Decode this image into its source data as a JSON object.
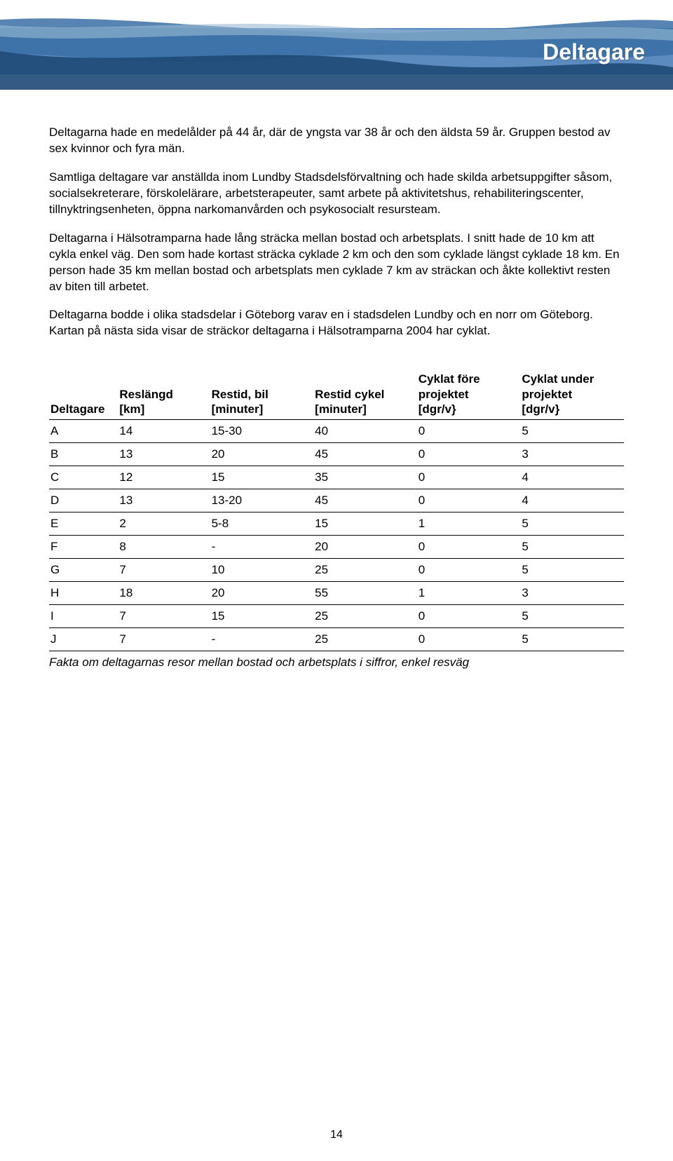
{
  "banner": {
    "title": "Deltagare",
    "colors": {
      "base": "#5b8bbf",
      "mid": "#3a6ea5",
      "dark": "#1e4976",
      "light": "#9bbad6"
    }
  },
  "paragraphs": [
    "Deltagarna hade en medelålder på 44 år, där de yngsta var 38 år och den äldsta 59 år. Gruppen bestod av sex kvinnor och fyra män.",
    "Samtliga deltagare var anställda inom Lundby Stadsdelsförvaltning och hade skilda arbetsuppgifter såsom, socialsekreterare, förskolelärare, arbetsterapeuter, samt arbete på aktivitetshus, rehabiliteringscenter, tillnyktringsenheten, öppna narkomanvården och psykosocialt resursteam.",
    "Deltagarna i Hälsotramparna hade lång sträcka mellan bostad och arbetsplats. I snitt hade de 10 km att cykla enkel väg. Den som hade kortast sträcka cyklade 2 km och den som cyklade längst cyklade 18 km. En person hade 35 km mellan bostad och arbetsplats men cyklade 7 km av sträckan och åkte kollektivt resten av biten till arbetet.",
    "Deltagarna bodde i olika stadsdelar i Göteborg varav en i stadsdelen Lundby och en norr om Göteborg. Kartan på nästa sida visar de sträckor deltagarna i Hälsotramparna 2004 har cyklat."
  ],
  "table": {
    "type": "table",
    "columns": [
      "Deltagare",
      "Reslängd\n[km]",
      "Restid, bil\n[minuter]",
      "Restid cykel\n[minuter]",
      "Cyklat före\nprojektet\n[dgr/v}",
      "Cyklat under\nprojektet\n[dgr/v}"
    ],
    "col_widths_pct": [
      12,
      16,
      18,
      18,
      18,
      18
    ],
    "rows": [
      [
        "A",
        "14",
        "15-30",
        "40",
        "0",
        "5"
      ],
      [
        "B",
        "13",
        "20",
        "45",
        "0",
        "3"
      ],
      [
        "C",
        "12",
        "15",
        "35",
        "0",
        "4"
      ],
      [
        "D",
        "13",
        "13-20",
        "45",
        "0",
        "4"
      ],
      [
        "E",
        "2",
        "5-8",
        "15",
        "1",
        "5"
      ],
      [
        "F",
        "8",
        "-",
        "20",
        "0",
        "5"
      ],
      [
        "G",
        "7",
        "10",
        "25",
        "0",
        "5"
      ],
      [
        "H",
        "18",
        "20",
        "55",
        "1",
        "3"
      ],
      [
        "I",
        "7",
        "15",
        "25",
        "0",
        "5"
      ],
      [
        "J",
        "7",
        "-",
        "25",
        "0",
        "5"
      ]
    ],
    "border_color": "#000000",
    "font_size_pt": 13,
    "header_font_weight": "bold"
  },
  "caption": "Fakta om deltagarnas resor mellan bostad och arbetsplats i siffror, enkel resväg",
  "page_number": "14"
}
